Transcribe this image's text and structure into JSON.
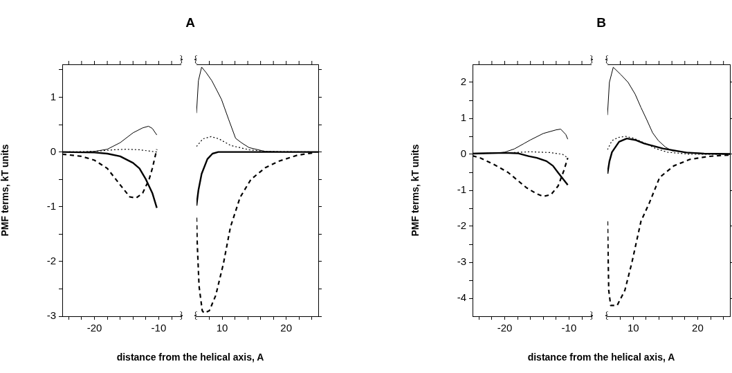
{
  "chart_data": [
    {
      "type": "line",
      "title": "A",
      "xlabel": "distance from the helical axis, A",
      "ylabel": "PMF terms, kT units",
      "xlim": [
        -25,
        -6.5
      ],
      "ylim": [
        -3,
        1.6
      ],
      "xticks": [
        {
          "value": -24,
          "label": null
        },
        {
          "value": -22,
          "label": null
        },
        -20,
        {
          "value": -18,
          "label": null
        },
        {
          "value": -16,
          "label": null
        },
        {
          "value": -14,
          "label": null
        },
        {
          "value": -12,
          "label": null
        },
        -10,
        {
          "value": -8,
          "label": null
        }
      ],
      "yticks": [
        -3,
        {
          "value": -2.5,
          "label": null
        },
        -2,
        {
          "value": -1.5,
          "label": null
        },
        -1,
        {
          "value": -0.5,
          "label": null
        },
        0,
        {
          "value": 0.5,
          "label": null
        },
        1,
        {
          "value": 1.5,
          "label": null
        }
      ],
      "series": [
        {
          "color": "#000000",
          "line_style": "solid",
          "x": [
            -25,
            -22,
            -20,
            -18,
            -16,
            -14,
            -12.5,
            -11.6,
            -11,
            -10.3
          ],
          "values": [
            0,
            0,
            0.01,
            0.05,
            0.17,
            0.35,
            0.44,
            0.47,
            0.43,
            0.31
          ]
        },
        {
          "color": "#000000",
          "line_style": "dotted",
          "x": [
            -25,
            -20,
            -17,
            -15,
            -13,
            -11,
            -10.3
          ],
          "values": [
            0,
            0.01,
            0.04,
            0.05,
            0.04,
            0.01,
            0
          ]
        },
        {
          "color": "#000000",
          "line_style": "solid",
          "x": [
            -25,
            -20,
            -18,
            -16,
            -14,
            -13,
            -12,
            -11,
            -10.3
          ],
          "values": [
            0,
            -0.01,
            -0.03,
            -0.08,
            -0.2,
            -0.3,
            -0.5,
            -0.75,
            -1.02
          ]
        },
        {
          "color": "#000000",
          "line_style": "dashed",
          "x": [
            -25,
            -22,
            -20,
            -18,
            -16,
            -14.5,
            -13.5,
            -12.5,
            -11.5,
            -11,
            -10.5,
            -10.3
          ],
          "values": [
            -0.04,
            -0.08,
            -0.15,
            -0.3,
            -0.6,
            -0.82,
            -0.84,
            -0.75,
            -0.5,
            -0.3,
            -0.05,
            0.05
          ]
        }
      ]
    },
    {
      "type": "line",
      "xlim": [
        6,
        25
      ],
      "ylim": [
        -3,
        1.6
      ],
      "tick_labels": "x",
      "xticks": [
        {
          "value": 8,
          "label": null
        },
        10,
        {
          "value": 12,
          "label": null
        },
        {
          "value": 14,
          "label": null
        },
        {
          "value": 16,
          "label": null
        },
        {
          "value": 18,
          "label": null
        },
        20,
        {
          "value": 22,
          "label": null
        },
        {
          "value": 24,
          "label": null
        }
      ],
      "yticks": [
        {
          "value": -3,
          "label": null
        },
        {
          "value": -2.5,
          "label": null
        },
        {
          "value": -2,
          "label": null
        },
        {
          "value": -1.5,
          "label": null
        },
        {
          "value": -1,
          "label": null
        },
        {
          "value": -0.5,
          "label": null
        },
        {
          "value": 0,
          "label": null
        },
        {
          "value": 0.5,
          "label": null
        },
        {
          "value": 1,
          "label": null
        },
        {
          "value": 1.5,
          "label": null
        }
      ],
      "series": [
        {
          "color": "#000000",
          "line_style": "solid",
          "x": [
            6,
            6.3,
            6.8,
            7.5,
            8.4,
            9.2,
            9.9,
            11,
            12.1,
            13,
            14.2,
            16.7,
            20,
            25
          ],
          "values": [
            0.71,
            1.3,
            1.55,
            1.45,
            1.3,
            1.12,
            0.96,
            0.6,
            0.25,
            0.17,
            0.08,
            0.01,
            0,
            0
          ]
        },
        {
          "color": "#000000",
          "line_style": "dotted",
          "x": [
            6,
            7,
            8.3,
            9.5,
            11.3,
            14.2,
            17,
            25
          ],
          "values": [
            0.1,
            0.24,
            0.28,
            0.24,
            0.12,
            0.04,
            0.01,
            0
          ]
        },
        {
          "color": "#000000",
          "line_style": "solid",
          "x": [
            6,
            6.3,
            6.8,
            7.7,
            8.5,
            9.4,
            25
          ],
          "values": [
            -0.98,
            -0.7,
            -0.4,
            -0.13,
            -0.03,
            0,
            0
          ]
        },
        {
          "color": "#000000",
          "line_style": "dashed",
          "x": [
            6,
            6.1,
            6.4,
            6.9,
            7.2,
            8,
            9,
            10.2,
            11.3,
            12.8,
            14.5,
            16.7,
            18.8,
            21.7,
            24.5
          ],
          "values": [
            -1.2,
            -1.62,
            -2.45,
            -2.9,
            -2.94,
            -2.9,
            -2.62,
            -2.04,
            -1.37,
            -0.83,
            -0.5,
            -0.29,
            -0.17,
            -0.06,
            -0.01
          ]
        }
      ]
    },
    {
      "type": "line",
      "title": "B",
      "xlabel": "distance from the helical axis, A",
      "ylabel": "PMF terms, kT units",
      "xlim": [
        -25,
        -6.5
      ],
      "ylim": [
        -4.5,
        2.5
      ],
      "xticks": [
        {
          "value": -24,
          "label": null
        },
        {
          "value": -22,
          "label": null
        },
        -20,
        {
          "value": -18,
          "label": null
        },
        {
          "value": -16,
          "label": null
        },
        {
          "value": -14,
          "label": null
        },
        {
          "value": -12,
          "label": null
        },
        -10,
        {
          "value": -8,
          "label": null
        }
      ],
      "yticks": [
        -4,
        {
          "value": -3.5,
          "label": null
        },
        -3,
        {
          "value": -2.5,
          "label": null
        },
        -2,
        {
          "value": -1.5,
          "label": null
        },
        -1,
        {
          "value": -0.5,
          "label": null
        },
        0,
        {
          "value": 0.5,
          "label": null
        },
        1,
        {
          "value": 1.5,
          "label": null
        },
        2
      ],
      "series": [
        {
          "color": "#000000",
          "line_style": "solid",
          "x": [
            -25,
            -21,
            -20,
            -18.5,
            -17,
            -16,
            -14,
            -12,
            -11.3,
            -10.5,
            -10.2
          ],
          "values": [
            0.03,
            0.04,
            0.06,
            0.15,
            0.3,
            0.4,
            0.58,
            0.68,
            0.7,
            0.55,
            0.42
          ]
        },
        {
          "color": "#000000",
          "line_style": "dotted",
          "x": [
            -25,
            -20,
            -16,
            -13,
            -11,
            -10.2
          ],
          "values": [
            0.02,
            0.04,
            0.07,
            0.05,
            0,
            -0.1
          ]
        },
        {
          "color": "#000000",
          "line_style": "solid",
          "x": [
            -25,
            -20,
            -18,
            -16.3,
            -15,
            -13.5,
            -12.5,
            -11.7,
            -10.2
          ],
          "values": [
            0.02,
            0.04,
            0.03,
            -0.05,
            -0.1,
            -0.19,
            -0.32,
            -0.51,
            -0.85
          ]
        },
        {
          "color": "#000000",
          "line_style": "dashed",
          "x": [
            -25,
            -23.8,
            -21.7,
            -19.5,
            -16.6,
            -15,
            -14,
            -12.8,
            -11.7,
            -10.8,
            -10.2
          ],
          "values": [
            -0.04,
            -0.1,
            -0.28,
            -0.5,
            -0.93,
            -1.1,
            -1.17,
            -1.12,
            -0.88,
            -0.45,
            -0.1
          ]
        }
      ]
    },
    {
      "type": "line",
      "xlim": [
        6,
        25
      ],
      "ylim": [
        -4.5,
        2.5
      ],
      "tick_labels": "x",
      "xticks": [
        {
          "value": 8,
          "label": null
        },
        10,
        {
          "value": 12,
          "label": null
        },
        {
          "value": 14,
          "label": null
        },
        {
          "value": 16,
          "label": null
        },
        {
          "value": 18,
          "label": null
        },
        20,
        {
          "value": 22,
          "label": null
        },
        {
          "value": 24,
          "label": null
        }
      ],
      "yticks": [
        {
          "value": -4,
          "label": null
        },
        {
          "value": -3,
          "label": null
        },
        {
          "value": -2,
          "label": null
        },
        {
          "value": -1,
          "label": null
        },
        {
          "value": 0,
          "label": null
        },
        {
          "value": 1,
          "label": null
        },
        {
          "value": 2,
          "label": null
        }
      ],
      "series": [
        {
          "color": "#000000",
          "line_style": "solid",
          "x": [
            6,
            6.3,
            6.9,
            8.1,
            9.2,
            10.3,
            11.2,
            12.1,
            13,
            13.9,
            15,
            16,
            18.9,
            22,
            25
          ],
          "values": [
            1.09,
            2.0,
            2.42,
            2.21,
            2.0,
            1.67,
            1.3,
            0.96,
            0.6,
            0.38,
            0.2,
            0.1,
            0.04,
            0.02,
            0.01
          ]
        },
        {
          "color": "#000000",
          "line_style": "dotted",
          "x": [
            6,
            6.7,
            7.7,
            8.8,
            10,
            11.7,
            13.5,
            15.3,
            18.9,
            25
          ],
          "values": [
            0.13,
            0.38,
            0.47,
            0.5,
            0.45,
            0.32,
            0.16,
            0.06,
            0,
            0
          ]
        },
        {
          "color": "#000000",
          "line_style": "solid",
          "x": [
            6,
            6.3,
            6.7,
            7.8,
            9,
            10.3,
            11.7,
            14.6,
            18.2,
            21,
            25
          ],
          "values": [
            -0.54,
            -0.2,
            0.06,
            0.35,
            0.44,
            0.4,
            0.3,
            0.16,
            0.05,
            0.02,
            0.01
          ]
        },
        {
          "color": "#000000",
          "line_style": "dashed",
          "x": [
            6,
            6.1,
            6.2,
            6.5,
            7.5,
            8.7,
            9.8,
            11.2,
            12.5,
            14.1,
            16.3,
            18.8,
            21.6,
            23.7,
            25
          ],
          "values": [
            -1.86,
            -2.82,
            -3.78,
            -4.2,
            -4.2,
            -3.78,
            -3.0,
            -1.86,
            -1.35,
            -0.64,
            -0.32,
            -0.14,
            -0.06,
            -0.03,
            -0.02
          ]
        }
      ]
    }
  ]
}
